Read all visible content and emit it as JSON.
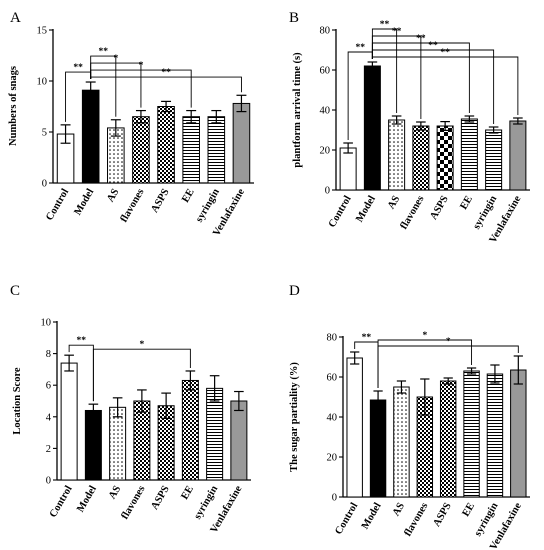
{
  "figure": {
    "panels": [
      "A",
      "B",
      "C",
      "D"
    ]
  },
  "chart_data": [
    {
      "type": "bar",
      "panel": "A",
      "ylabel": "Numbers of snags",
      "ylim": [
        0,
        15
      ],
      "yticks": [
        0,
        5,
        10,
        15
      ],
      "categories": [
        "Control",
        "Model",
        "AS",
        "flavones",
        "ASPS",
        "EE",
        "syringin",
        "Venlafaxine"
      ],
      "values": [
        4.8,
        9.1,
        5.4,
        6.5,
        7.5,
        6.5,
        6.5,
        7.8
      ],
      "errors": [
        0.9,
        0.8,
        0.8,
        0.6,
        0.5,
        0.6,
        0.6,
        0.8
      ],
      "fills": [
        "white",
        "black",
        "dots",
        "checker-small",
        "checker-small",
        "hstripes",
        "hstripes",
        "gray"
      ],
      "comparisons": [
        {
          "from": 0,
          "to": 1,
          "label": "**"
        },
        {
          "from": 1,
          "to": 2,
          "label": "**"
        },
        {
          "from": 1,
          "to": 3,
          "label": "*"
        },
        {
          "from": 1,
          "to": 5,
          "label": "*"
        },
        {
          "from": 1,
          "to": 7,
          "label": "**"
        }
      ]
    },
    {
      "type": "bar",
      "panel": "B",
      "ylabel": "plantform arrival time (s)",
      "ylim": [
        0,
        80
      ],
      "yticks": [
        0,
        20,
        40,
        60,
        80
      ],
      "categories": [
        "Control",
        "Model",
        "AS",
        "flavones",
        "ASPS",
        "EE",
        "syringin",
        "Venlafaxine"
      ],
      "values": [
        21,
        62,
        35,
        32,
        32,
        35.5,
        30,
        34.5
      ],
      "errors": [
        2.5,
        2,
        2,
        2,
        2.2,
        1.5,
        1.5,
        1.5
      ],
      "fills": [
        "white",
        "black",
        "dots",
        "checker-small",
        "checker-large",
        "hstripes",
        "hstripes",
        "gray"
      ],
      "comparisons": [
        {
          "from": 0,
          "to": 1,
          "label": "**"
        },
        {
          "from": 1,
          "to": 2,
          "label": "**"
        },
        {
          "from": 1,
          "to": 3,
          "label": "**"
        },
        {
          "from": 1,
          "to": 5,
          "label": "**"
        },
        {
          "from": 1,
          "to": 6,
          "label": "**"
        },
        {
          "from": 1,
          "to": 7,
          "label": "**"
        }
      ]
    },
    {
      "type": "bar",
      "panel": "C",
      "ylabel": "Location Score",
      "ylim": [
        0,
        10
      ],
      "yticks": [
        0,
        2,
        4,
        6,
        8,
        10
      ],
      "categories": [
        "Control",
        "Model",
        "AS",
        "flavones",
        "ASPS",
        "EE",
        "syringin",
        "Venlafaxine"
      ],
      "values": [
        7.4,
        4.4,
        4.6,
        5.0,
        4.7,
        6.3,
        5.8,
        5.0
      ],
      "errors": [
        0.5,
        0.4,
        0.6,
        0.7,
        0.8,
        0.6,
        0.8,
        0.6
      ],
      "fills": [
        "white",
        "black",
        "dots",
        "checker-small",
        "checker-small",
        "checker-small",
        "hstripes",
        "gray"
      ],
      "comparisons": [
        {
          "from": 0,
          "to": 1,
          "label": "**"
        },
        {
          "from": 1,
          "to": 5,
          "label": "*"
        }
      ]
    },
    {
      "type": "bar",
      "panel": "D",
      "ylabel": "The sugar partiality (%)",
      "ylim": [
        0,
        80
      ],
      "yticks": [
        0,
        20,
        40,
        60,
        80
      ],
      "categories": [
        "Control",
        "Model",
        "AS",
        "flavones",
        "ASPS",
        "EE",
        "syringin",
        "Venlafaxine"
      ],
      "values": [
        69.5,
        48.5,
        55,
        50,
        58,
        63,
        61.5,
        63.5
      ],
      "errors": [
        3,
        4.5,
        3,
        9,
        1.5,
        1.5,
        4.5,
        7
      ],
      "fills": [
        "white",
        "black",
        "dots",
        "checker-small",
        "checker-small",
        "hstripes",
        "hstripes",
        "gray"
      ],
      "comparisons": [
        {
          "from": 0,
          "to": 1,
          "label": "**"
        },
        {
          "from": 1,
          "to": 5,
          "label": "*"
        },
        {
          "from": 1,
          "to": 7,
          "label": "*"
        }
      ]
    }
  ]
}
